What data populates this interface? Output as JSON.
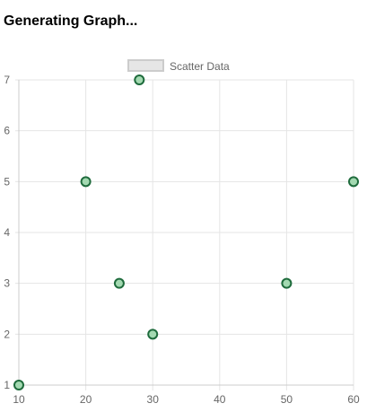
{
  "page": {
    "heading": "Generating Graph..."
  },
  "chart_data": {
    "type": "scatter",
    "title": "",
    "xlabel": "",
    "ylabel": "",
    "xlim": [
      10,
      60
    ],
    "ylim": [
      1,
      7
    ],
    "x_ticks": [
      10,
      20,
      30,
      40,
      50,
      60
    ],
    "y_ticks": [
      1,
      2,
      3,
      4,
      5,
      6,
      7
    ],
    "grid": true,
    "legend_position": "top-center",
    "series": [
      {
        "name": "Scatter Data",
        "points": [
          {
            "x": 10,
            "y": 1
          },
          {
            "x": 20,
            "y": 5
          },
          {
            "x": 25,
            "y": 3
          },
          {
            "x": 28,
            "y": 7
          },
          {
            "x": 30,
            "y": 2
          },
          {
            "x": 50,
            "y": 3
          },
          {
            "x": 60,
            "y": 5
          }
        ]
      }
    ],
    "colors": {
      "point_fill": "#a3d9b1",
      "point_stroke": "#1e6b3c",
      "legend_fill": "#e6e6e6",
      "legend_stroke": "#cccccc",
      "grid": "#e5e5e5",
      "axis": "#cccccc"
    }
  }
}
